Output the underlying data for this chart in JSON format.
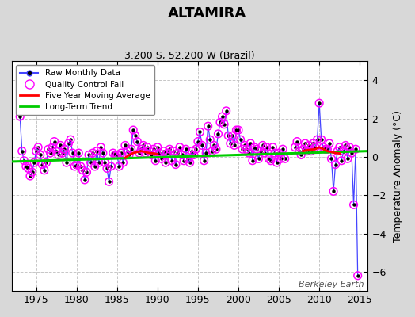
{
  "title": "ALTAMIRA",
  "subtitle": "3.200 S, 52.200 W (Brazil)",
  "ylabel": "Temperature Anomaly (°C)",
  "watermark": "Berkeley Earth",
  "xlim": [
    1972,
    2016
  ],
  "ylim": [
    -7,
    5
  ],
  "yticks": [
    -6,
    -4,
    -2,
    0,
    2,
    4
  ],
  "xticks": [
    1975,
    1980,
    1985,
    1990,
    1995,
    2000,
    2005,
    2010,
    2015
  ],
  "bg_color": "#d8d8d8",
  "plot_bg_color": "#ffffff",
  "grid_color": "#c0c0c0",
  "raw_line_color": "#4444ff",
  "raw_dot_color": "#000000",
  "qc_fail_color": "#ff00ff",
  "moving_avg_color": "#ff0000",
  "trend_color": "#00cc00",
  "trend_x": [
    1972,
    2016
  ],
  "trend_y": [
    -0.25,
    0.3
  ],
  "raw_data_x": [
    1973.0,
    1973.25,
    1973.5,
    1973.75,
    1974.0,
    1974.25,
    1974.5,
    1974.75,
    1975.0,
    1975.25,
    1975.5,
    1975.75,
    1976.0,
    1976.25,
    1976.5,
    1976.75,
    1977.0,
    1977.25,
    1977.5,
    1977.75,
    1978.0,
    1978.25,
    1978.5,
    1978.75,
    1979.0,
    1979.25,
    1979.5,
    1979.75,
    1980.0,
    1980.25,
    1980.5,
    1980.75,
    1981.0,
    1981.25,
    1981.5,
    1981.75,
    1982.0,
    1982.25,
    1982.5,
    1982.75,
    1983.0,
    1983.25,
    1983.5,
    1983.75,
    1984.0,
    1984.25,
    1984.5,
    1984.75,
    1985.0,
    1985.25,
    1985.5,
    1985.75,
    1986.0,
    1986.25,
    1986.5,
    1986.75,
    1987.0,
    1987.25,
    1987.5,
    1987.75,
    1988.0,
    1988.25,
    1988.5,
    1988.75,
    1989.0,
    1989.25,
    1989.5,
    1989.75,
    1990.0,
    1990.25,
    1990.5,
    1990.75,
    1991.0,
    1991.25,
    1991.5,
    1991.75,
    1992.0,
    1992.25,
    1992.5,
    1992.75,
    1993.0,
    1993.25,
    1993.5,
    1993.75,
    1994.0,
    1994.25,
    1994.5,
    1994.75,
    1995.0,
    1995.25,
    1995.5,
    1995.75,
    1996.0,
    1996.25,
    1996.5,
    1996.75,
    1997.0,
    1997.25,
    1997.5,
    1997.75,
    1998.0,
    1998.25,
    1998.5,
    1998.75,
    1999.0,
    1999.25,
    1999.5,
    1999.75,
    2000.0,
    2000.25,
    2000.5,
    2000.75,
    2001.0,
    2001.25,
    2001.5,
    2001.75,
    2002.0,
    2002.25,
    2002.5,
    2002.75,
    2003.0,
    2003.25,
    2003.5,
    2003.75,
    2004.0,
    2004.25,
    2004.5,
    2004.75,
    2005.0,
    2005.25,
    2005.5,
    2005.75,
    2007.0,
    2007.25,
    2007.5,
    2007.75,
    2008.0,
    2008.25,
    2008.5,
    2008.75,
    2009.0,
    2009.25,
    2009.5,
    2009.75,
    2010.0,
    2010.25,
    2010.5,
    2010.75,
    2011.0,
    2011.25,
    2011.5,
    2011.75,
    2012.0,
    2012.25,
    2012.5,
    2012.75,
    2013.0,
    2013.25,
    2013.5,
    2013.75,
    2014.0,
    2014.25,
    2014.5,
    2014.75
  ],
  "raw_data_y": [
    2.1,
    0.3,
    -0.2,
    -0.5,
    -0.6,
    -1.0,
    -0.8,
    -0.3,
    0.3,
    0.5,
    0.1,
    -0.4,
    -0.7,
    -0.3,
    0.4,
    0.2,
    0.5,
    0.8,
    0.3,
    0.1,
    0.6,
    0.2,
    0.4,
    -0.3,
    0.7,
    0.9,
    0.2,
    -0.5,
    -0.4,
    0.2,
    -0.5,
    -0.7,
    -1.2,
    -0.8,
    0.1,
    -0.3,
    0.2,
    -0.5,
    0.3,
    -0.3,
    0.5,
    0.2,
    -0.3,
    -0.6,
    -1.3,
    -0.5,
    0.2,
    0.1,
    0.1,
    -0.5,
    0.2,
    -0.3,
    0.6,
    0.3,
    0.1,
    0.4,
    1.4,
    1.1,
    0.8,
    0.2,
    0.4,
    0.6,
    0.2,
    0.5,
    0.3,
    0.1,
    0.4,
    -0.2,
    0.5,
    0.2,
    -0.1,
    0.3,
    -0.3,
    0.2,
    0.4,
    -0.2,
    0.3,
    -0.4,
    0.2,
    0.5,
    0.1,
    -0.2,
    0.4,
    -0.1,
    -0.3,
    0.3,
    0.1,
    0.4,
    0.8,
    1.3,
    0.6,
    -0.2,
    0.2,
    1.6,
    0.9,
    0.3,
    0.6,
    0.4,
    1.2,
    1.8,
    2.1,
    1.7,
    2.4,
    1.1,
    0.7,
    1.1,
    0.6,
    1.4,
    1.4,
    0.9,
    0.4,
    0.6,
    0.4,
    0.2,
    0.7,
    -0.2,
    0.5,
    0.4,
    -0.1,
    0.3,
    0.6,
    0.2,
    0.5,
    -0.1,
    -0.2,
    0.5,
    0.2,
    -0.3,
    0.2,
    -0.1,
    0.4,
    -0.1,
    0.5,
    0.8,
    0.3,
    0.1,
    0.4,
    0.7,
    0.3,
    0.6,
    0.3,
    0.7,
    0.5,
    0.9,
    2.8,
    0.9,
    0.5,
    0.4,
    0.4,
    0.7,
    -0.1,
    -1.8,
    -0.4,
    0.3,
    0.5,
    -0.2,
    0.3,
    0.6,
    -0.1,
    0.5,
    0.2,
    -2.5,
    0.4,
    -6.2
  ],
  "qc_fail_indices": [
    0,
    1,
    2,
    3,
    4,
    5,
    6,
    7,
    8,
    9,
    10,
    11,
    12,
    13,
    14,
    15,
    16,
    17,
    18,
    19,
    20,
    21,
    22,
    23,
    24,
    25,
    26,
    27,
    28,
    29,
    30,
    31,
    32,
    33,
    34,
    35,
    36,
    37,
    38,
    39,
    40,
    41,
    42,
    43,
    44,
    45,
    46,
    47,
    48,
    49,
    50,
    51,
    52,
    53,
    54,
    55,
    56,
    57,
    58,
    59,
    60,
    61,
    62,
    63,
    64,
    65,
    66,
    67,
    68,
    69,
    70,
    71,
    72,
    73,
    74,
    75,
    76,
    77,
    78,
    79,
    80,
    81,
    82,
    83,
    84,
    85,
    86,
    87,
    88,
    89,
    90,
    91,
    92,
    93,
    94,
    95,
    96,
    97,
    98,
    99,
    100,
    101,
    102,
    103,
    104,
    105,
    106,
    107,
    108,
    109,
    110,
    111,
    112,
    113,
    114,
    115,
    116,
    117,
    118,
    119,
    120,
    121,
    122,
    123,
    124,
    125,
    126,
    127,
    128,
    129,
    130,
    131,
    132,
    133,
    134,
    135,
    136,
    137,
    138,
    139,
    140,
    141,
    142,
    143,
    144,
    145,
    146,
    147,
    148,
    149,
    150,
    151,
    152,
    153,
    154,
    155,
    156,
    157,
    158,
    159,
    160,
    161,
    162,
    163
  ],
  "ma_seg1_x": [
    1986.0,
    1986.5,
    1987.0,
    1987.5,
    1988.0,
    1988.5,
    1989.0,
    1989.5,
    1990.0
  ],
  "ma_seg1_y": [
    -0.05,
    0.1,
    0.2,
    0.25,
    0.3,
    0.25,
    0.2,
    0.18,
    0.15
  ],
  "ma_seg2_x": [
    2008.0,
    2008.5,
    2009.0,
    2009.5,
    2010.0,
    2010.5,
    2011.0,
    2011.5,
    2012.0,
    2012.5
  ],
  "ma_seg2_y": [
    0.3,
    0.35,
    0.38,
    0.4,
    0.5,
    0.4,
    0.3,
    0.25,
    0.2,
    0.18
  ]
}
